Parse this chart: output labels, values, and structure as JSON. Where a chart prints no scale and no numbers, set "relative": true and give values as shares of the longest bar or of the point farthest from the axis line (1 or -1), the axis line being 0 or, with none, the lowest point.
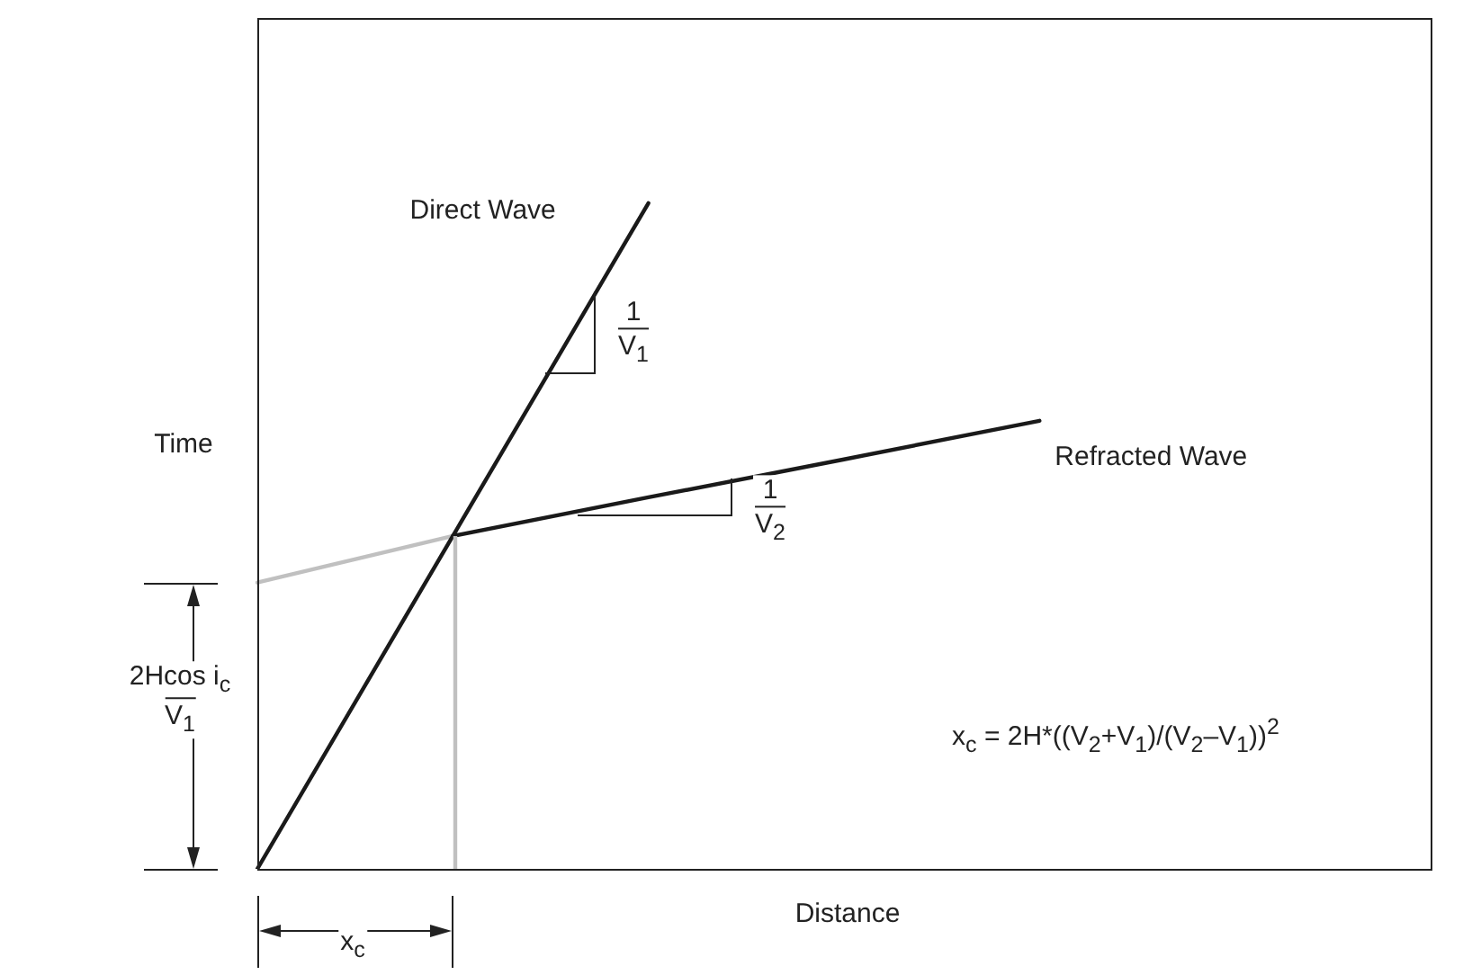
{
  "chart_data": {
    "type": "line",
    "xlabel": "Distance",
    "ylabel": "Time",
    "relative": true,
    "tick_labels": false,
    "marker": "none",
    "line_style": "solid",
    "categories": [
      null,
      null,
      null,
      null,
      null,
      null,
      null
    ],
    "series": [
      {
        "name": "Direct Wave",
        "color": "#1a1a1a",
        "values": [
          0,
          0.5,
          1,
          null,
          null,
          null,
          null
        ]
      },
      {
        "name": "Refracted Wave",
        "color": "#1a1a1a",
        "values": [
          null,
          0.5,
          0.558,
          0.615,
          0.673,
          null,
          null
        ]
      },
      {
        "color": "#c0c0c0",
        "values": [
          0.43,
          0.5,
          null,
          null,
          null,
          null,
          null
        ]
      }
    ],
    "annotations": [
      "1\nV$_{1}$",
      "1\nV$_{2}$",
      "2Hcos i$_{c}$\nV$_{1}$",
      "x$_{c}$",
      "x$_{c}$ = 2H*((V$_{2}$+V$_{1}$)/(V$_{2}$–V$_{1}$))$^{2}$"
    ]
  }
}
